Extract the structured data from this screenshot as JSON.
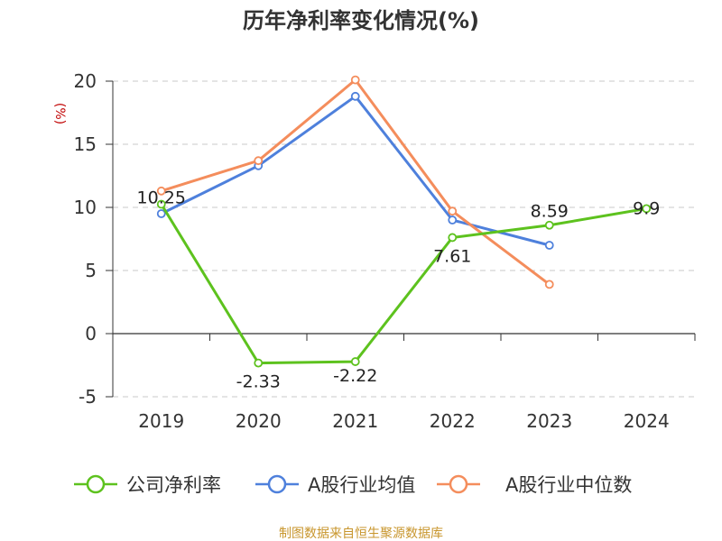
{
  "chart_data": {
    "type": "line",
    "title": "历年净利率变化情况(%)",
    "ylabel": "(%)",
    "xlabel": "",
    "categories": [
      "2019",
      "2020",
      "2021",
      "2022",
      "2023",
      "2024"
    ],
    "ylim": [
      -5,
      20
    ],
    "yticks": [
      -5,
      0,
      5,
      10,
      15,
      20
    ],
    "grid": true,
    "legend_position": "bottom",
    "series": [
      {
        "name": "公司净利率",
        "color": "#5dc21e",
        "values": [
          10.25,
          -2.33,
          -2.22,
          7.61,
          8.59,
          9.9
        ],
        "labels": [
          "10.25",
          "-2.33",
          "-2.22",
          "7.61",
          "8.59",
          "9.9"
        ]
      },
      {
        "name": "A股行业均值",
        "color": "#4e80dc",
        "values": [
          9.5,
          13.3,
          18.8,
          9.0,
          7.0,
          null
        ]
      },
      {
        "name": "A股行业中位数",
        "color": "#f48d5c",
        "values": [
          11.3,
          13.7,
          20.1,
          9.7,
          3.9,
          null
        ]
      }
    ]
  },
  "source": "制图数据来自恒生聚源数据库"
}
